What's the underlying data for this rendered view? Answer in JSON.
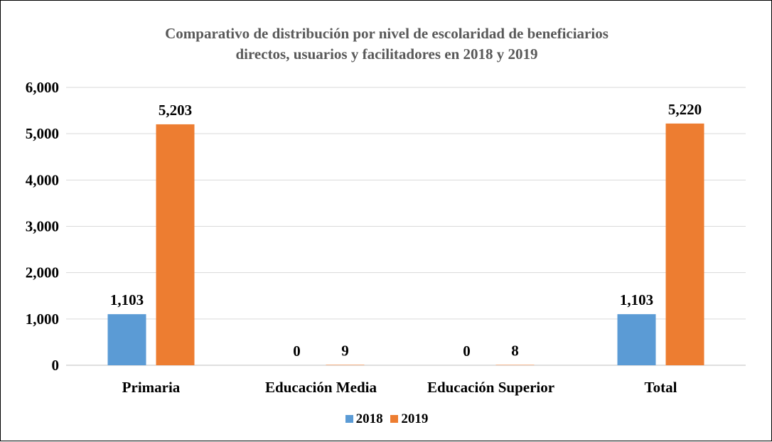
{
  "chart_data": {
    "type": "bar",
    "title_lines": [
      "Comparativo de distribución por nivel de escolaridad de beneficiarios",
      "directos, usuarios y facilitadores en 2018 y 2019"
    ],
    "categories": [
      "Primaria",
      "Educación Media",
      "Educación Superior",
      "Total"
    ],
    "series": [
      {
        "name": "2018",
        "color": "#5B9BD5",
        "values": [
          1103,
          0,
          0,
          1103
        ],
        "labels": [
          "1,103",
          "0",
          "0",
          "1,103"
        ]
      },
      {
        "name": "2019",
        "color": "#ED7D31",
        "values": [
          5203,
          9,
          8,
          5220
        ],
        "labels": [
          "5,203",
          "9",
          "8",
          "5,220"
        ]
      }
    ],
    "ylim": [
      0,
      6000
    ],
    "yticks": [
      0,
      1000,
      2000,
      3000,
      4000,
      5000,
      6000
    ],
    "ytick_labels": [
      "0",
      "1,000",
      "2,000",
      "3,000",
      "4,000",
      "5,000",
      "6,000"
    ],
    "grid": true,
    "legend_position": "bottom",
    "xlabel": "",
    "ylabel": ""
  }
}
